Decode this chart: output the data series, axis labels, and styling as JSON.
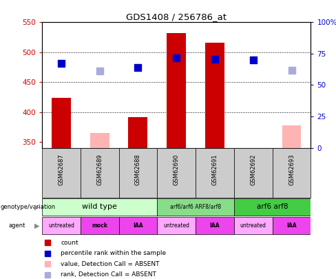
{
  "title": "GDS1408 / 256786_at",
  "samples": [
    "GSM62687",
    "GSM62689",
    "GSM62688",
    "GSM62690",
    "GSM62691",
    "GSM62692",
    "GSM62693"
  ],
  "count_values": [
    424,
    null,
    392,
    532,
    515,
    null,
    null
  ],
  "count_absent_values": [
    null,
    365,
    null,
    null,
    null,
    null,
    378
  ],
  "percentile_values": [
    481,
    null,
    474,
    490,
    488,
    487,
    null
  ],
  "percentile_absent_values": [
    null,
    469,
    null,
    null,
    null,
    null,
    470
  ],
  "ylim_left": [
    340,
    550
  ],
  "ylim_right": [
    0,
    100
  ],
  "yticks_left": [
    350,
    400,
    450,
    500,
    550
  ],
  "yticks_right": [
    0,
    25,
    50,
    75,
    100
  ],
  "ytick_right_labels": [
    "0",
    "25",
    "50",
    "75",
    "100%"
  ],
  "bar_color": "#cc0000",
  "bar_absent_color": "#ffb3b3",
  "pct_color": "#0000cc",
  "pct_absent_color": "#aaaadd",
  "genotype_data": [
    {
      "sc": 0,
      "ec": 2,
      "label": "wild type",
      "color": "#ccffcc",
      "fontsize": 8
    },
    {
      "sc": 3,
      "ec": 4,
      "label": "arf6/arf6 ARF8/arf8",
      "color": "#88dd88",
      "fontsize": 5.5
    },
    {
      "sc": 5,
      "ec": 6,
      "label": "arf6 arf8",
      "color": "#44cc44",
      "fontsize": 7.5
    }
  ],
  "agent_data": [
    {
      "col": 0,
      "label": "untreated",
      "color": "#ffaaff",
      "bold": false
    },
    {
      "col": 1,
      "label": "mock",
      "color": "#ee44ee",
      "bold": true
    },
    {
      "col": 2,
      "label": "IAA",
      "color": "#ee44ee",
      "bold": true
    },
    {
      "col": 3,
      "label": "untreated",
      "color": "#ffaaff",
      "bold": false
    },
    {
      "col": 4,
      "label": "IAA",
      "color": "#ee44ee",
      "bold": true
    },
    {
      "col": 5,
      "label": "untreated",
      "color": "#ffaaff",
      "bold": false
    },
    {
      "col": 6,
      "label": "IAA",
      "color": "#ee44ee",
      "bold": true
    }
  ],
  "bar_width": 0.5,
  "pct_marker_size": 7,
  "grid_yticks": [
    400,
    450,
    500
  ],
  "legend_items": [
    {
      "color": "#cc0000",
      "label": "count"
    },
    {
      "color": "#0000cc",
      "label": "percentile rank within the sample"
    },
    {
      "color": "#ffb3b3",
      "label": "value, Detection Call = ABSENT"
    },
    {
      "color": "#aaaadd",
      "label": "rank, Detection Call = ABSENT"
    }
  ]
}
